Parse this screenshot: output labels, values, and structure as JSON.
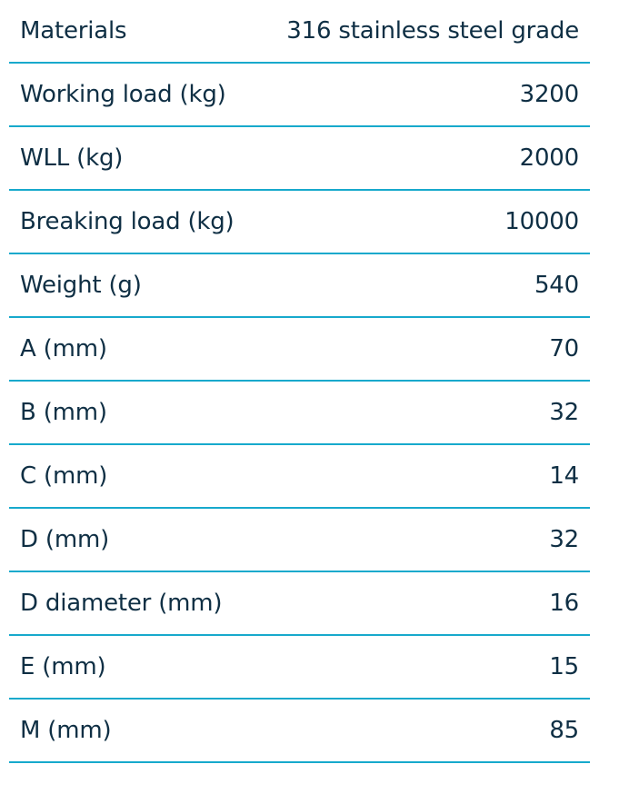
{
  "specs": [
    {
      "label": "Materials",
      "value": "316 stainless steel grade"
    },
    {
      "label": "Working load (kg)",
      "value": "3200"
    },
    {
      "label": "WLL (kg)",
      "value": "2000"
    },
    {
      "label": "Breaking load (kg)",
      "value": "10000"
    },
    {
      "label": "Weight (g)",
      "value": "540"
    },
    {
      "label": "A (mm)",
      "value": "70"
    },
    {
      "label": "B (mm)",
      "value": "32"
    },
    {
      "label": "C (mm)",
      "value": "14"
    },
    {
      "label": "D (mm)",
      "value": "32"
    },
    {
      "label": "D diameter (mm)",
      "value": "16"
    },
    {
      "label": "E (mm)",
      "value": "15"
    },
    {
      "label": "M (mm)",
      "value": "85"
    }
  ],
  "colors": {
    "text": "#0f2f44",
    "divider": "#17a9cc"
  }
}
